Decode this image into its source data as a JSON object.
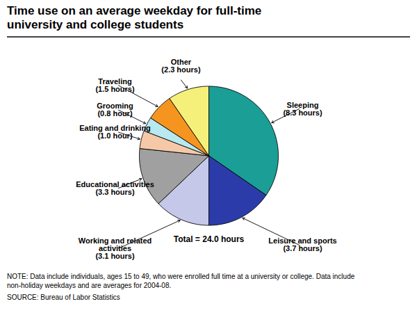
{
  "chart_data": {
    "type": "pie",
    "title": "Time use on an average weekday for full-time\nuniversity and college students",
    "categories": [
      "Sleeping\n(8.3 hours)",
      "Leisure and sports\n(3.7 hours)",
      "Working and related\nactivities\n(3.1 hours)",
      "Educational activities\n(3.3 hours)",
      "Eating and drinking\n(1.0 hour)",
      "Grooming\n(0.8 hour)",
      "Traveling\n(1.5 hours)",
      "Other\n(2.3 hours)"
    ],
    "values": [
      8.3,
      3.7,
      3.1,
      3.3,
      1.0,
      0.8,
      1.5,
      2.3
    ],
    "colors": [
      "#1a9e96",
      "#2b3caa",
      "#c5c8e8",
      "#a0a0a0",
      "#f5c9a8",
      "#b8e8f0",
      "#f59520",
      "#f5f07a"
    ],
    "annotations": [
      "Total = 24.0 hours",
      "NOTE: Data include individuals, ages 15 to 49, who were enrolled full time at a university or college. Data include\nnon-holiday weekdays and are averages for 2004-08.",
      "SOURCE: Bureau of Labor Statistics"
    ]
  }
}
